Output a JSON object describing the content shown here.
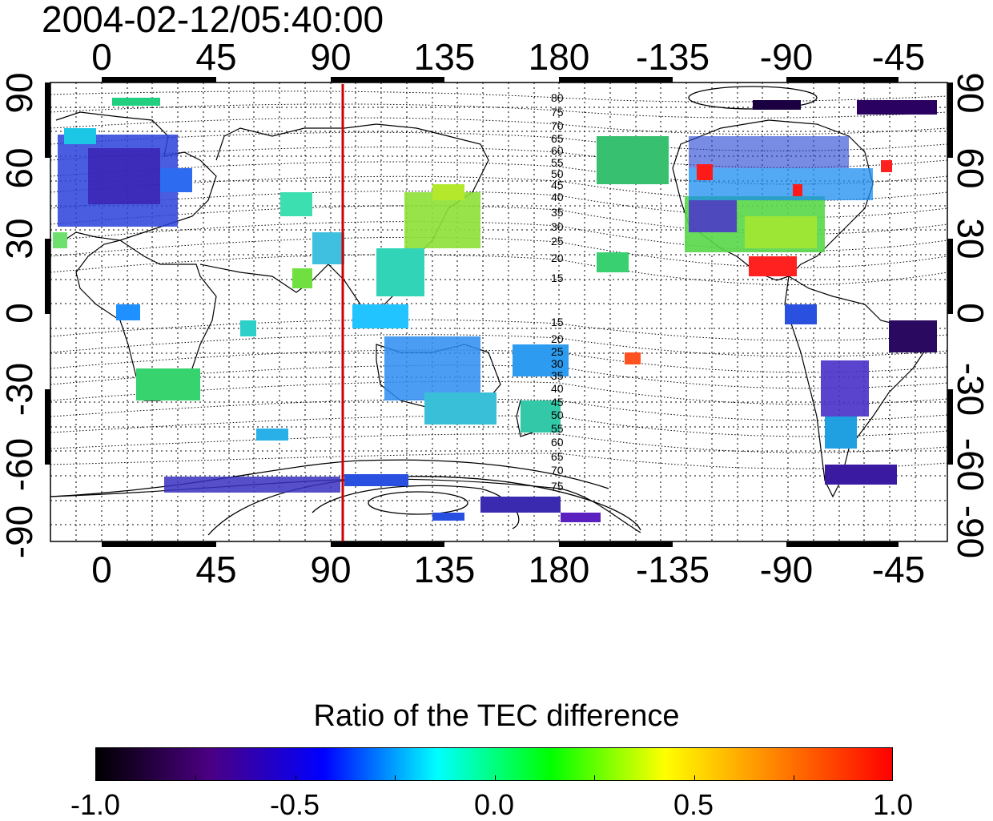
{
  "timestamp": "2004-02-12/05:40:00",
  "axes": {
    "top_ticks": [
      "0",
      "45",
      "90",
      "135",
      "180",
      "-135",
      "-90",
      "-45"
    ],
    "bottom_ticks": [
      "0",
      "45",
      "90",
      "135",
      "180",
      "-135",
      "-90",
      "-45"
    ],
    "left_ticks": [
      "90",
      "60",
      "30",
      "0",
      "-30",
      "-60",
      "-90"
    ],
    "right_ticks": [
      "90",
      "60",
      "30",
      "0",
      "-30",
      "-60",
      "-90"
    ]
  },
  "contour_labels_north": [
    "80",
    "75",
    "70",
    "65",
    "60",
    "55",
    "50",
    "45",
    "40",
    "35",
    "30",
    "25",
    "20",
    "15"
  ],
  "contour_labels_south": [
    "15",
    "20",
    "25",
    "30",
    "35",
    "40",
    "45",
    "50",
    "55",
    "60",
    "65",
    "70",
    "75"
  ],
  "marker_line": {
    "longitude": 95,
    "color": "#cc0000"
  },
  "colorbar": {
    "title": "Ratio of the TEC difference",
    "tick_labels": [
      "-1.0",
      "-0.5",
      "0.0",
      "0.5",
      "1.0"
    ],
    "colors": [
      "#000000",
      "#4b0082",
      "#0000ff",
      "#00ffff",
      "#00ff00",
      "#ffff00",
      "#ff8000",
      "#ff0000"
    ]
  }
}
